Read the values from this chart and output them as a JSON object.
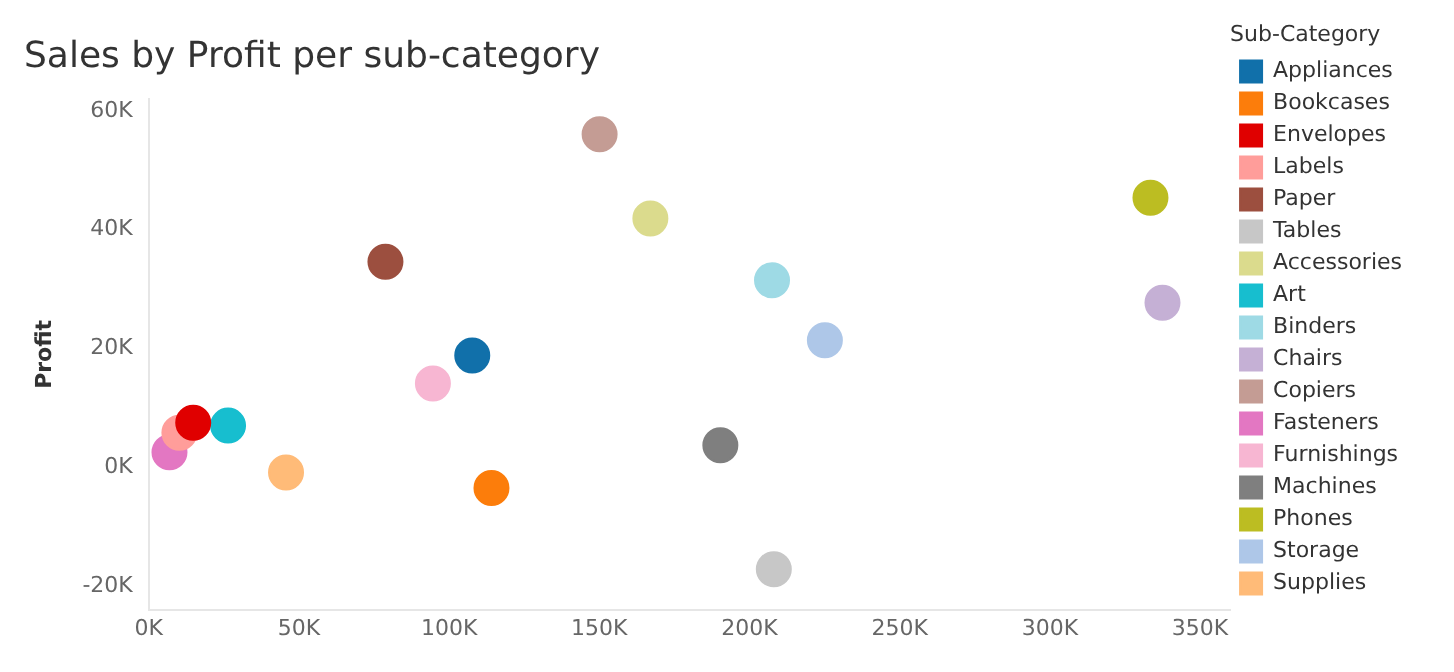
{
  "chart_data": {
    "type": "scatter",
    "title": "Sales by Profit per sub-category",
    "ylabel": "Profit",
    "legend_title": "Sub-Category",
    "legend": "right",
    "marker": "circle",
    "xlim": [
      0,
      360000
    ],
    "xticks": [
      {
        "value": 0,
        "label": "0K"
      },
      {
        "value": 50000,
        "label": "50K"
      },
      {
        "value": 100000,
        "label": "100K"
      },
      {
        "value": 150000,
        "label": "150K"
      },
      {
        "value": 200000,
        "label": "200K"
      },
      {
        "value": 250000,
        "label": "250K"
      },
      {
        "value": 300000,
        "label": "300K"
      },
      {
        "value": 350000,
        "label": "350K"
      }
    ],
    "ylim": [
      -24000,
      62000
    ],
    "yticks": [
      {
        "value": -20000,
        "label": "-20K"
      },
      {
        "value": 0,
        "label": "0K"
      },
      {
        "value": 20000,
        "label": "20K"
      },
      {
        "value": 40000,
        "label": "40K"
      },
      {
        "value": 60000,
        "label": "60K"
      }
    ],
    "series": [
      {
        "name": "Appliances",
        "color": "#1170aa",
        "x": [
          107700
        ],
        "values": [
          18800
        ]
      },
      {
        "name": "Bookcases",
        "color": "#fc7d0b",
        "x": [
          114100
        ],
        "values": [
          -3500
        ]
      },
      {
        "name": "Envelopes",
        "color": "#e00000",
        "x": [
          14800
        ],
        "values": [
          7500
        ]
      },
      {
        "name": "Labels",
        "color": "#ff9d9a",
        "x": [
          10200
        ],
        "values": [
          5800
        ]
      },
      {
        "name": "Paper",
        "color": "#9c4f3f",
        "x": [
          78800
        ],
        "values": [
          34600
        ]
      },
      {
        "name": "Tables",
        "color": "#c7c7c7",
        "x": [
          208100
        ],
        "values": [
          -17200
        ]
      },
      {
        "name": "Accessories",
        "color": "#dbdb8d",
        "x": [
          167000
        ],
        "values": [
          41900
        ]
      },
      {
        "name": "Art",
        "color": "#17becf",
        "x": [
          26400
        ],
        "values": [
          7000
        ]
      },
      {
        "name": "Binders",
        "color": "#9edae5",
        "x": [
          207500
        ],
        "values": [
          31500
        ]
      },
      {
        "name": "Chairs",
        "color": "#c5b0d5",
        "x": [
          337500
        ],
        "values": [
          27700
        ]
      },
      {
        "name": "Copiers",
        "color": "#c49c94",
        "x": [
          150100
        ],
        "values": [
          56100
        ]
      },
      {
        "name": "Fasteners",
        "color": "#e377c2",
        "x": [
          6900
        ],
        "values": [
          2500
        ]
      },
      {
        "name": "Furnishings",
        "color": "#f7b6d2",
        "x": [
          94600
        ],
        "values": [
          14100
        ]
      },
      {
        "name": "Machines",
        "color": "#7f7f7f",
        "x": [
          190300
        ],
        "values": [
          3700
        ]
      },
      {
        "name": "Phones",
        "color": "#bcbd22",
        "x": [
          333500
        ],
        "values": [
          45400
        ]
      },
      {
        "name": "Storage",
        "color": "#aec7e8",
        "x": [
          225100
        ],
        "values": [
          21400
        ]
      },
      {
        "name": "Supplies",
        "color": "#ffbb78",
        "x": [
          45700
        ],
        "values": [
          -900
        ]
      }
    ]
  }
}
